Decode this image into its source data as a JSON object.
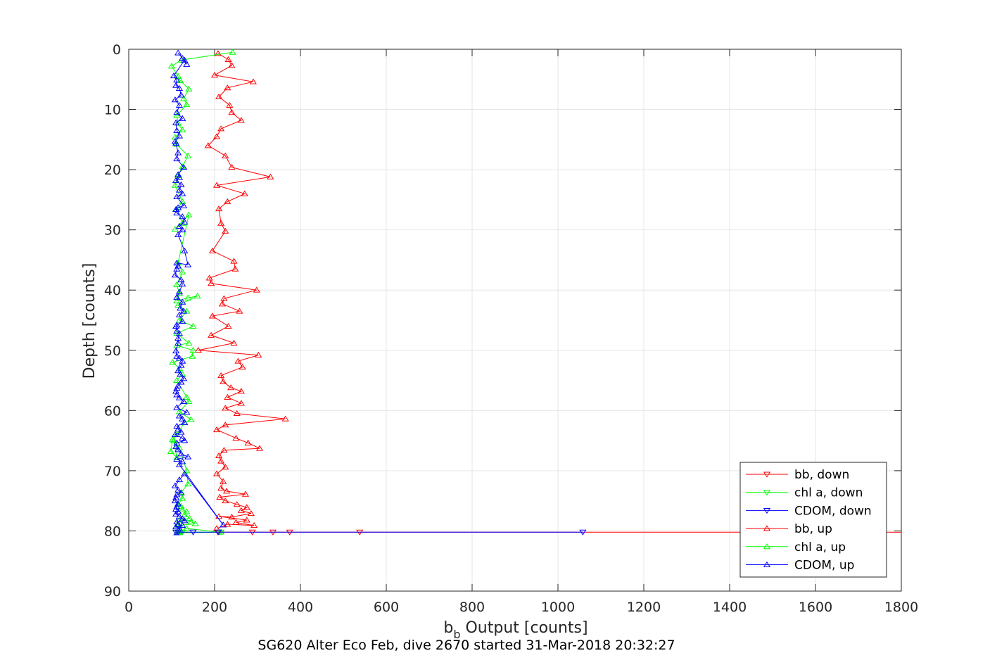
{
  "chart_data": {
    "type": "line",
    "title": "SG620 Alter Eco Feb, dive 2670 started 31-Mar-2018 20:32:27",
    "xlabel_main": "b",
    "xlabel_sub": "b",
    "xlabel_rest": " Output [counts]",
    "ylabel": "Depth [counts]",
    "xlim": [
      0,
      1800
    ],
    "ylim": [
      0,
      90
    ],
    "y_reversed": true,
    "grid": true,
    "legend_position": "bottom-right",
    "xticks": [
      0,
      200,
      400,
      600,
      800,
      1000,
      1200,
      1400,
      1600,
      1800
    ],
    "yticks": [
      0,
      10,
      20,
      30,
      40,
      50,
      60,
      70,
      80,
      90
    ],
    "colors": {
      "bb": "#ff0000",
      "chl": "#00ff00",
      "cdom": "#0000ff",
      "axis": "#262626",
      "grid": "#e6e6e6"
    },
    "series": [
      {
        "name": "bb, down",
        "color": "#ff0000",
        "marker": "triangle-down",
        "x": [
          210,
          1800,
          538,
          375,
          336,
          288
        ],
        "y": [
          80.2,
          80.2,
          80.2,
          80.2,
          80.2,
          80.2
        ]
      },
      {
        "name": "chl a, down",
        "color": "#00ff00",
        "marker": "triangle-down",
        "x": [
          122,
          110,
          118,
          215,
          125
        ],
        "y": [
          80.2,
          80.2,
          80.2,
          80.2,
          80.2
        ]
      },
      {
        "name": "CDOM, down",
        "color": "#0000ff",
        "marker": "triangle-down",
        "x": [
          110,
          1058,
          208,
          150,
          115
        ],
        "y": [
          80.2,
          80.2,
          80.2,
          80.2,
          80.2
        ]
      },
      {
        "name": "bb, up",
        "color": "#ff0000",
        "marker": "triangle-up",
        "x": [
          208,
          232,
          240,
          200,
          290,
          230,
          210,
          235,
          240,
          262,
          215,
          205,
          185,
          225,
          240,
          330,
          205,
          270,
          230,
          210,
          215,
          225,
          195,
          245,
          248,
          188,
          192,
          298,
          222,
          218,
          258,
          195,
          232,
          192,
          245,
          162,
          302,
          255,
          265,
          215,
          220,
          238,
          262,
          230,
          262,
          225,
          252,
          365,
          225,
          205,
          250,
          278,
          305,
          222,
          210,
          215,
          225,
          205,
          220,
          215,
          228,
          272,
          212,
          225,
          252,
          275,
          262,
          285,
          240,
          210,
          275,
          250,
          292,
          230,
          205
        ],
        "y": [
          0.7,
          1.7,
          2.7,
          4.3,
          5.4,
          6.4,
          7.9,
          9.3,
          10.5,
          11.8,
          13.2,
          14.5,
          16.0,
          17.7,
          19.6,
          21.2,
          22.6,
          24.0,
          25.3,
          26.5,
          28.9,
          30.2,
          33.5,
          35.2,
          36.5,
          38.0,
          38.9,
          40.0,
          41.4,
          42.3,
          43.5,
          44.3,
          46.0,
          47.5,
          48.8,
          50.0,
          50.8,
          51.8,
          52.8,
          54.2,
          55.2,
          56.2,
          56.8,
          57.8,
          58.8,
          59.6,
          60.5,
          61.4,
          62.4,
          63.2,
          64.6,
          65.4,
          66.3,
          66.6,
          67.5,
          68.4,
          69.4,
          70.5,
          71.8,
          72.9,
          73.4,
          73.9,
          74.4,
          75.0,
          75.6,
          76.1,
          76.6,
          77.1,
          77.7,
          77.6,
          78.2,
          78.6,
          79.1,
          78.9,
          79.6
        ]
      },
      {
        "name": "chl a, up",
        "color": "#00ff00",
        "marker": "triangle-up",
        "x": [
          242,
          122,
          100,
          115,
          120,
          140,
          128,
          135,
          112,
          115,
          125,
          108,
          112,
          138,
          125,
          115,
          108,
          125,
          112,
          125,
          108,
          140,
          115,
          125,
          112,
          118,
          112,
          138,
          160,
          115,
          135,
          118,
          150,
          112,
          140,
          112,
          150,
          148,
          102,
          118,
          125,
          112,
          135,
          140,
          118,
          145,
          130,
          112,
          102,
          98,
          112,
          105,
          118,
          135,
          138,
          122,
          125,
          115,
          122,
          125,
          135,
          130,
          142,
          118,
          145,
          155,
          115,
          135,
          215,
          115
        ],
        "y": [
          0.5,
          1.8,
          2.8,
          4.5,
          5.2,
          6.6,
          8.2,
          9.2,
          11.0,
          12.3,
          13.4,
          14.6,
          15.8,
          17.7,
          19.5,
          21.0,
          22.6,
          25.3,
          26.6,
          28.9,
          29.9,
          27.5,
          35.5,
          37.0,
          39.1,
          40.6,
          41.8,
          41.3,
          41.0,
          42.5,
          43.5,
          45.0,
          46.0,
          47.2,
          48.8,
          49.2,
          50.0,
          51.0,
          52.0,
          53.0,
          54.0,
          55.0,
          57.8,
          58.5,
          60.2,
          61.5,
          62.0,
          64.0,
          64.8,
          66.8,
          67.8,
          65.0,
          66.2,
          70.0,
          72.2,
          73.6,
          74.6,
          75.6,
          75.9,
          76.5,
          76.8,
          77.3,
          77.9,
          78.2,
          78.5,
          78.8,
          79.1,
          79.6,
          80.2,
          80.3
        ]
      },
      {
        "name": "CDOM, up",
        "color": "#0000ff",
        "marker": "triangle-up",
        "x": [
          115,
          125,
          135,
          130,
          105,
          112,
          110,
          118,
          122,
          108,
          118,
          112,
          125,
          110,
          112,
          118,
          108,
          110,
          115,
          112,
          128,
          115,
          118,
          110,
          122,
          118,
          125,
          112,
          128,
          115,
          110,
          112,
          125,
          130,
          118,
          125,
          115,
          130,
          138,
          112,
          115,
          112,
          108,
          122,
          125,
          118,
          112,
          125,
          120,
          128,
          118,
          125,
          112,
          110,
          112,
          118,
          115,
          115,
          110,
          112,
          118,
          125,
          122,
          115,
          120,
          128,
          122,
          115,
          112,
          110,
          112,
          118,
          128,
          112,
          135,
          118,
          125,
          130,
          112,
          115,
          122,
          108,
          125,
          130,
          112,
          110,
          115,
          122,
          138,
          112,
          125,
          118,
          220,
          130,
          118,
          108,
          115,
          122,
          112,
          110,
          108,
          115,
          112,
          110,
          115,
          110,
          118,
          125,
          130,
          112,
          115,
          125,
          110,
          118,
          120,
          118,
          112
        ],
        "y": [
          0.6,
          1.5,
          2.5,
          1.8,
          4.4,
          5.1,
          6.0,
          6.5,
          7.6,
          8.4,
          9.3,
          10.5,
          11.5,
          12.2,
          13.5,
          14.4,
          15.3,
          15.6,
          17.2,
          18.2,
          19.6,
          20.8,
          21.3,
          21.8,
          22.5,
          23.4,
          24.0,
          24.5,
          26.0,
          26.3,
          26.6,
          27.2,
          27.8,
          28.7,
          29.4,
          30.0,
          30.8,
          33.5,
          35.8,
          35.5,
          36.0,
          36.5,
          37.5,
          38.3,
          39.0,
          40.3,
          41.2,
          42.0,
          43.0,
          43.5,
          44.1,
          45.2,
          45.8,
          46.0,
          46.8,
          47.2,
          48.0,
          48.8,
          50.1,
          51.0,
          51.3,
          51.8,
          52.5,
          53.4,
          54.0,
          54.7,
          55.3,
          55.9,
          56.3,
          56.8,
          57.4,
          57.9,
          58.5,
          59.5,
          60.3,
          60.9,
          61.4,
          62.0,
          62.6,
          63.1,
          63.6,
          64.0,
          64.6,
          65.0,
          65.4,
          66.0,
          66.5,
          67.2,
          67.7,
          68.1,
          68.5,
          69.0,
          79.0,
          70.5,
          71.5,
          72.5,
          73.2,
          73.7,
          74.0,
          74.5,
          75.0,
          75.5,
          76.0,
          76.4,
          76.8,
          77.2,
          77.6,
          78.0,
          78.3,
          78.5,
          78.9,
          79.1,
          79.3,
          79.6,
          79.9,
          80.1,
          80.3
        ]
      }
    ]
  }
}
